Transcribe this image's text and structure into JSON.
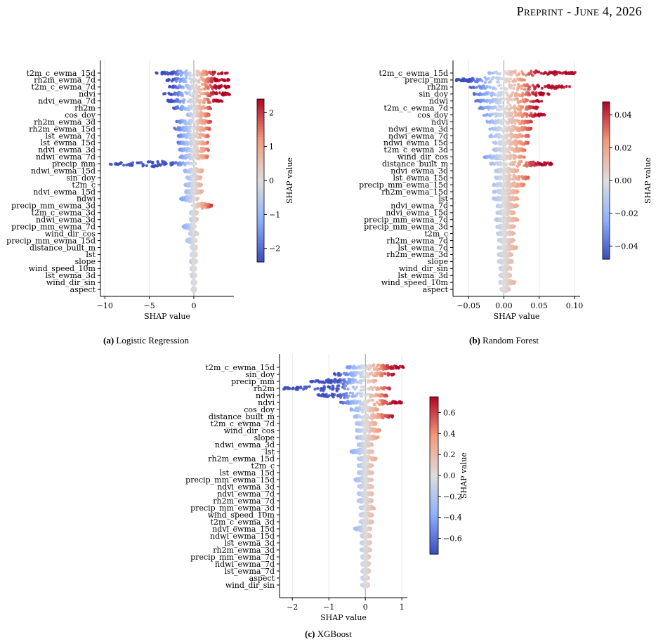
{
  "header": {
    "left": "Preprint",
    "sep": " - ",
    "right": "June 4, 2026"
  },
  "colorbar_label": "SHAP value",
  "chart_data": [
    {
      "type": "scatter",
      "subtype": "shap-beeswarm",
      "caption_label": "(a)",
      "caption_text": "Logistic Regression",
      "xlabel": "SHAP value",
      "xlim": [
        -10.5,
        4.5
      ],
      "xticks": [
        -10,
        -5,
        0
      ],
      "xtick_labels": [
        "−10",
        "−5",
        "0"
      ],
      "colorbar": {
        "label": "SHAP value",
        "range": [
          -2.4,
          2.4
        ],
        "ticks": [
          -2,
          -1,
          0,
          1,
          2
        ],
        "tick_labels": [
          "−2",
          "−1",
          "0",
          "1",
          "2"
        ]
      },
      "features": [
        "t2m_c_ewma_15d",
        "rh2m_ewma_7d",
        "t2m_c_ewma_7d",
        "ndvi",
        "ndvi_ewma_7d",
        "rh2m",
        "cos_doy",
        "rh2m_ewma_3d",
        "rh2m_ewma_15d",
        "lst_ewma_7d",
        "lst_ewma_15d",
        "ndvi_ewma_3d",
        "ndwi_ewma_7d",
        "precip_mm",
        "ndwi_ewma_15d",
        "sin_doy",
        "t2m_c",
        "ndvi_ewma_15d",
        "ndwi",
        "precip_mm_ewma_3d",
        "t2m_c_ewma_3d",
        "ndwi_ewma_3d",
        "precip_mm_ewma_7d",
        "wind_dir_cos",
        "precip_mm_ewma_15d",
        "distance_built_m",
        "lst",
        "slope",
        "wind_speed_10m",
        "lst_ewma_3d",
        "wind_dir_sin",
        "aspect"
      ],
      "ranges": [
        [
          -4.3,
          3.8
        ],
        [
          -3.2,
          4.0
        ],
        [
          -2.8,
          4.2
        ],
        [
          -3.4,
          4.1
        ],
        [
          -3.0,
          3.2
        ],
        [
          -2.3,
          2.0
        ],
        [
          -0.8,
          1.8
        ],
        [
          -2.0,
          1.9
        ],
        [
          -2.2,
          1.8
        ],
        [
          -1.8,
          1.7
        ],
        [
          -1.8,
          1.6
        ],
        [
          -1.6,
          1.7
        ],
        [
          -1.6,
          1.6
        ],
        [
          -9.5,
          0.3
        ],
        [
          -1.1,
          1.0
        ],
        [
          -0.8,
          0.8
        ],
        [
          -1.0,
          0.9
        ],
        [
          -1.0,
          1.0
        ],
        [
          -1.5,
          0.5
        ],
        [
          -0.2,
          2.0
        ],
        [
          -0.4,
          0.4
        ],
        [
          -0.4,
          0.4
        ],
        [
          -1.2,
          0.2
        ],
        [
          -0.5,
          0.4
        ],
        [
          -0.8,
          0.3
        ],
        [
          -0.3,
          0.3
        ],
        [
          -0.3,
          0.3
        ],
        [
          -0.4,
          0.3
        ],
        [
          -0.3,
          0.2
        ],
        [
          -0.3,
          0.2
        ],
        [
          -0.2,
          0.2
        ],
        [
          -0.2,
          0.2
        ]
      ],
      "color_max": 2.4
    },
    {
      "type": "scatter",
      "subtype": "shap-beeswarm",
      "caption_label": "(b)",
      "caption_text": "Random Forest",
      "xlabel": "SHAP value",
      "xlim": [
        -0.072,
        0.108
      ],
      "xticks": [
        -0.05,
        0.0,
        0.05,
        0.1
      ],
      "xtick_labels": [
        "−0.05",
        "0.00",
        "0.05",
        "0.10"
      ],
      "colorbar": {
        "label": "SHAP value",
        "range": [
          -0.048,
          0.048
        ],
        "ticks": [
          -0.04,
          -0.02,
          0.0,
          0.02,
          0.04
        ],
        "tick_labels": [
          "−0.04",
          "−0.02",
          "0.00",
          "0.02",
          "0.04"
        ]
      },
      "features": [
        "t2m_c_ewma_15d",
        "precip_mm",
        "rh2m",
        "sin_doy",
        "ndwi",
        "t2m_c_ewma_7d",
        "cos_doy",
        "ndvi",
        "ndwi_ewma_3d",
        "ndwi_ewma_7d",
        "ndwi_ewma_15d",
        "t2m_c_ewma_3d",
        "wind_dir_cos",
        "distance_built_m",
        "ndvi_ewma_3d",
        "lst_ewma_15d",
        "precip_mm_ewma_15d",
        "rh2m_ewma_15d",
        "lst",
        "ndvi_ewma_7d",
        "ndvi_ewma_15d",
        "precip_mm_ewma_7d",
        "precip_mm_ewma_3d",
        "t2m_c",
        "rh2m_ewma_7d",
        "lst_ewma_7d",
        "rh2m_ewma_3d",
        "slope",
        "wind_dir_sin",
        "lst_ewma_3d",
        "wind_speed_10m",
        "aspect"
      ],
      "ranges": [
        [
          -0.024,
          0.102
        ],
        [
          -0.068,
          0.03
        ],
        [
          -0.05,
          0.095
        ],
        [
          -0.045,
          0.065
        ],
        [
          -0.04,
          0.055
        ],
        [
          -0.035,
          0.05
        ],
        [
          -0.03,
          0.058
        ],
        [
          -0.025,
          0.04
        ],
        [
          -0.02,
          0.04
        ],
        [
          -0.02,
          0.035
        ],
        [
          -0.015,
          0.035
        ],
        [
          -0.015,
          0.03
        ],
        [
          -0.028,
          0.03
        ],
        [
          -0.02,
          0.068
        ],
        [
          -0.012,
          0.02
        ],
        [
          -0.012,
          0.035
        ],
        [
          -0.015,
          0.03
        ],
        [
          -0.015,
          0.02
        ],
        [
          -0.015,
          0.02
        ],
        [
          -0.01,
          0.02
        ],
        [
          -0.01,
          0.015
        ],
        [
          -0.012,
          0.02
        ],
        [
          -0.01,
          0.015
        ],
        [
          -0.01,
          0.015
        ],
        [
          -0.008,
          0.015
        ],
        [
          -0.008,
          0.018
        ],
        [
          -0.008,
          0.012
        ],
        [
          -0.008,
          0.012
        ],
        [
          -0.006,
          0.01
        ],
        [
          -0.006,
          0.01
        ],
        [
          -0.006,
          0.016
        ],
        [
          -0.004,
          0.008
        ]
      ],
      "color_max": 0.048
    },
    {
      "type": "scatter",
      "subtype": "shap-beeswarm",
      "caption_label": "(c)",
      "caption_text": "XGBoost",
      "xlabel": "SHAP value",
      "xlim": [
        -2.35,
        1.15
      ],
      "xticks": [
        -2,
        -1,
        0,
        1
      ],
      "xtick_labels": [
        "−2",
        "−1",
        "0",
        "1"
      ],
      "colorbar": {
        "label": "SHAP value",
        "range": [
          -0.75,
          0.75
        ],
        "ticks": [
          -0.6,
          -0.4,
          -0.2,
          0.0,
          0.2,
          0.4,
          0.6
        ],
        "tick_labels": [
          "−0.6",
          "−0.4",
          "−0.2",
          "0.0",
          "0.2",
          "0.4",
          "0.6"
        ]
      },
      "features": [
        "t2m_c_ewma_15d",
        "sin_doy",
        "precip_mm",
        "rh2m",
        "ndwi",
        "ndvi",
        "cos_doy",
        "distance_built_m",
        "t2m_c_ewma_7d",
        "wind_dir_cos",
        "slope",
        "ndwi_ewma_3d",
        "lst",
        "rh2m_ewma_15d",
        "t2m_c",
        "lst_ewma_15d",
        "precip_mm_ewma_15d",
        "ndvi_ewma_3d",
        "ndvi_ewma_7d",
        "rh2m_ewma_7d",
        "precip_mm_ewma_3d",
        "wind_speed_10m",
        "t2m_c_ewma_3d",
        "ndvi_ewma_15d",
        "ndwi_ewma_15d",
        "lst_ewma_3d",
        "rh2m_ewma_3d",
        "precip_mm_ewma_7d",
        "ndwi_ewma_7d",
        "lst_ewma_7d",
        "aspect",
        "wind_dir_sin"
      ],
      "ranges": [
        [
          -0.5,
          1.05
        ],
        [
          -0.9,
          0.8
        ],
        [
          -1.5,
          0.3
        ],
        [
          -2.25,
          0.7
        ],
        [
          -1.3,
          0.6
        ],
        [
          -0.7,
          1.0
        ],
        [
          -0.4,
          0.35
        ],
        [
          -0.3,
          0.75
        ],
        [
          -0.25,
          0.3
        ],
        [
          -0.25,
          0.4
        ],
        [
          -0.25,
          0.35
        ],
        [
          -0.2,
          0.2
        ],
        [
          -0.4,
          0.2
        ],
        [
          -0.2,
          0.3
        ],
        [
          -0.2,
          0.2
        ],
        [
          -0.2,
          0.2
        ],
        [
          -0.3,
          0.2
        ],
        [
          -0.2,
          0.2
        ],
        [
          -0.2,
          0.2
        ],
        [
          -0.2,
          0.2
        ],
        [
          -0.15,
          0.25
        ],
        [
          -0.15,
          0.2
        ],
        [
          -0.15,
          0.2
        ],
        [
          -0.3,
          0.15
        ],
        [
          -0.12,
          0.15
        ],
        [
          -0.12,
          0.15
        ],
        [
          -0.12,
          0.15
        ],
        [
          -0.1,
          0.12
        ],
        [
          -0.1,
          0.12
        ],
        [
          -0.1,
          0.12
        ],
        [
          -0.1,
          0.1
        ],
        [
          -0.1,
          0.1
        ]
      ],
      "color_max": 0.75
    }
  ]
}
